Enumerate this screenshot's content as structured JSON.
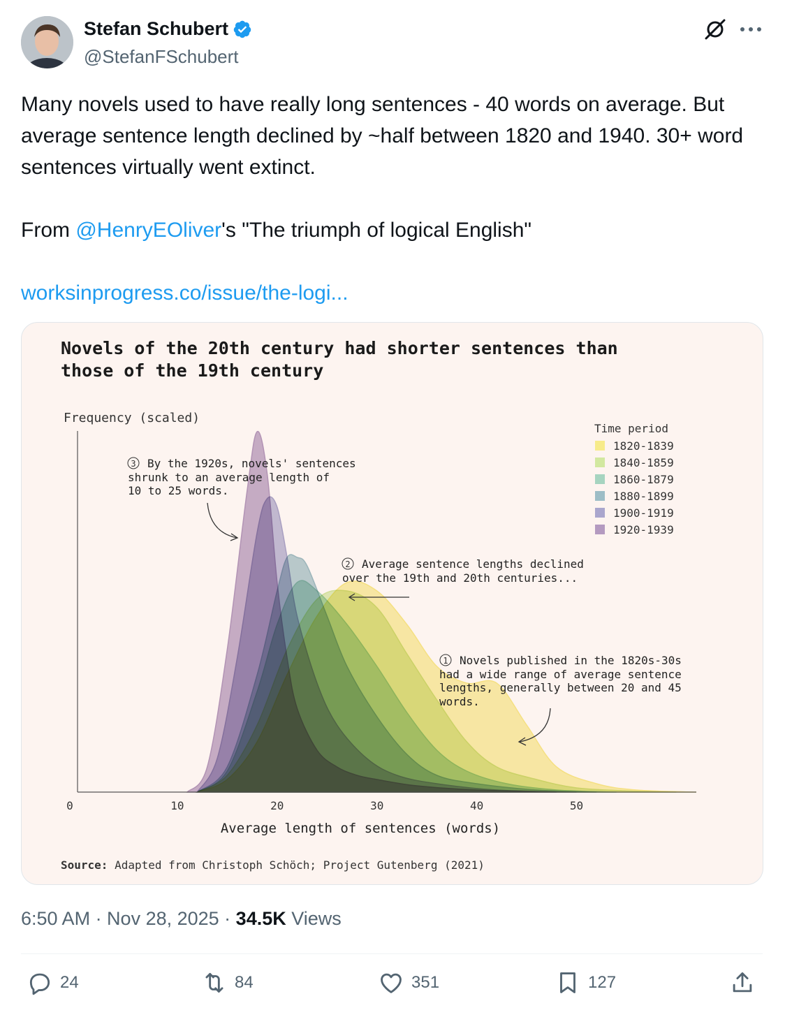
{
  "author": {
    "name": "Stefan Schubert",
    "handle": "@StefanFSchubert"
  },
  "tweet": {
    "line1": "Many novels used to have really long sentences - 40 words on average. But average sentence length declined by ~half between 1820 and 1940. 30+ word sentences virtually went extinct.",
    "from_prefix": "From ",
    "mention": "@HenryEOliver",
    "from_suffix": "'s \"The triumph of logical English\"",
    "link": "worksinprogress.co/issue/the-logi..."
  },
  "chart_data": {
    "type": "area",
    "title_line1": "Novels of the 20th century had shorter sentences than",
    "title_line2": "those of the 19th century",
    "ylabel": "Frequency (scaled)",
    "xlabel": "Average length of sentences (words)",
    "x_ticks": [
      "0",
      "10",
      "20",
      "30",
      "40",
      "50"
    ],
    "xlim": [
      0,
      62
    ],
    "legend_title": "Time period",
    "legend_position": "top-right",
    "series": [
      {
        "name": "1820-1839",
        "color": "#f7eb8a",
        "x": [
          12,
          15,
          18,
          21,
          24,
          27,
          30,
          33,
          36,
          39,
          42,
          45,
          48,
          52,
          56,
          62
        ],
        "y": [
          0,
          0.03,
          0.12,
          0.28,
          0.42,
          0.5,
          0.48,
          0.4,
          0.3,
          0.26,
          0.26,
          0.16,
          0.06,
          0.02,
          0.005,
          0
        ]
      },
      {
        "name": "1840-1859",
        "color": "#d2e8a0",
        "x": [
          12,
          15,
          18,
          21,
          24,
          27,
          30,
          33,
          36,
          39,
          42,
          46,
          50,
          55,
          60
        ],
        "y": [
          0,
          0.04,
          0.16,
          0.34,
          0.46,
          0.48,
          0.44,
          0.33,
          0.22,
          0.12,
          0.06,
          0.03,
          0.01,
          0.003,
          0
        ]
      },
      {
        "name": "1860-1879",
        "color": "#a6d4c0",
        "x": [
          12,
          15,
          18,
          20,
          22,
          24,
          27,
          30,
          33,
          36,
          39,
          43,
          48,
          54
        ],
        "y": [
          0,
          0.05,
          0.24,
          0.4,
          0.5,
          0.48,
          0.4,
          0.3,
          0.19,
          0.1,
          0.05,
          0.02,
          0.005,
          0
        ]
      },
      {
        "name": "1880-1899",
        "color": "#9dbdc6",
        "x": [
          12,
          15,
          18,
          20,
          21,
          22,
          23,
          25,
          27,
          30,
          33,
          36,
          40,
          46,
          52
        ],
        "y": [
          0,
          0.06,
          0.28,
          0.48,
          0.56,
          0.56,
          0.54,
          0.42,
          0.3,
          0.18,
          0.09,
          0.04,
          0.02,
          0.005,
          0
        ]
      },
      {
        "name": "1900-1919",
        "color": "#aaa6cd",
        "x": [
          12,
          14,
          16,
          18,
          19,
          20,
          21,
          22,
          24,
          26,
          29,
          32,
          36,
          42,
          50
        ],
        "y": [
          0,
          0.08,
          0.32,
          0.62,
          0.7,
          0.68,
          0.56,
          0.42,
          0.26,
          0.16,
          0.08,
          0.04,
          0.02,
          0.005,
          0
        ]
      },
      {
        "name": "1920-1939",
        "color": "#b49ac0",
        "x": [
          11,
          13,
          15,
          17,
          18,
          19,
          20,
          21,
          22,
          24,
          26,
          28,
          30,
          34,
          40,
          48
        ],
        "y": [
          0,
          0.06,
          0.34,
          0.72,
          0.86,
          0.76,
          0.5,
          0.32,
          0.2,
          0.1,
          0.06,
          0.04,
          0.03,
          0.015,
          0.005,
          0
        ]
      }
    ],
    "annotations": {
      "a3_num": "3",
      "a3_l1": "By the 1920s, novels' sentences",
      "a3_l2": "shrunk to an average length of",
      "a3_l3": "10 to 25 words.",
      "a2_num": "2",
      "a2_l1": "Average sentence lengths declined",
      "a2_l2": "over the 19th and 20th centuries...",
      "a1_num": "1",
      "a1_l1": "Novels published in the 1820s-30s",
      "a1_l2": "had a wide range of average sentence",
      "a1_l3": "lengths, generally between 20 and 45",
      "a1_l4": "words."
    },
    "source_label": "Source:",
    "source_text": " Adapted from Christoph Schöch; Project Gutenberg (2021)"
  },
  "meta": {
    "time": "6:50 AM · Nov 28, 2025 · ",
    "views_count": "34.5K",
    "views_label": " Views"
  },
  "actions": {
    "replies": "24",
    "reposts": "84",
    "likes": "351",
    "bookmarks": "127"
  },
  "colors": {
    "link": "#1d9bf0",
    "verified": "#1d9bf0",
    "card_bg": "#fdf4f0"
  }
}
